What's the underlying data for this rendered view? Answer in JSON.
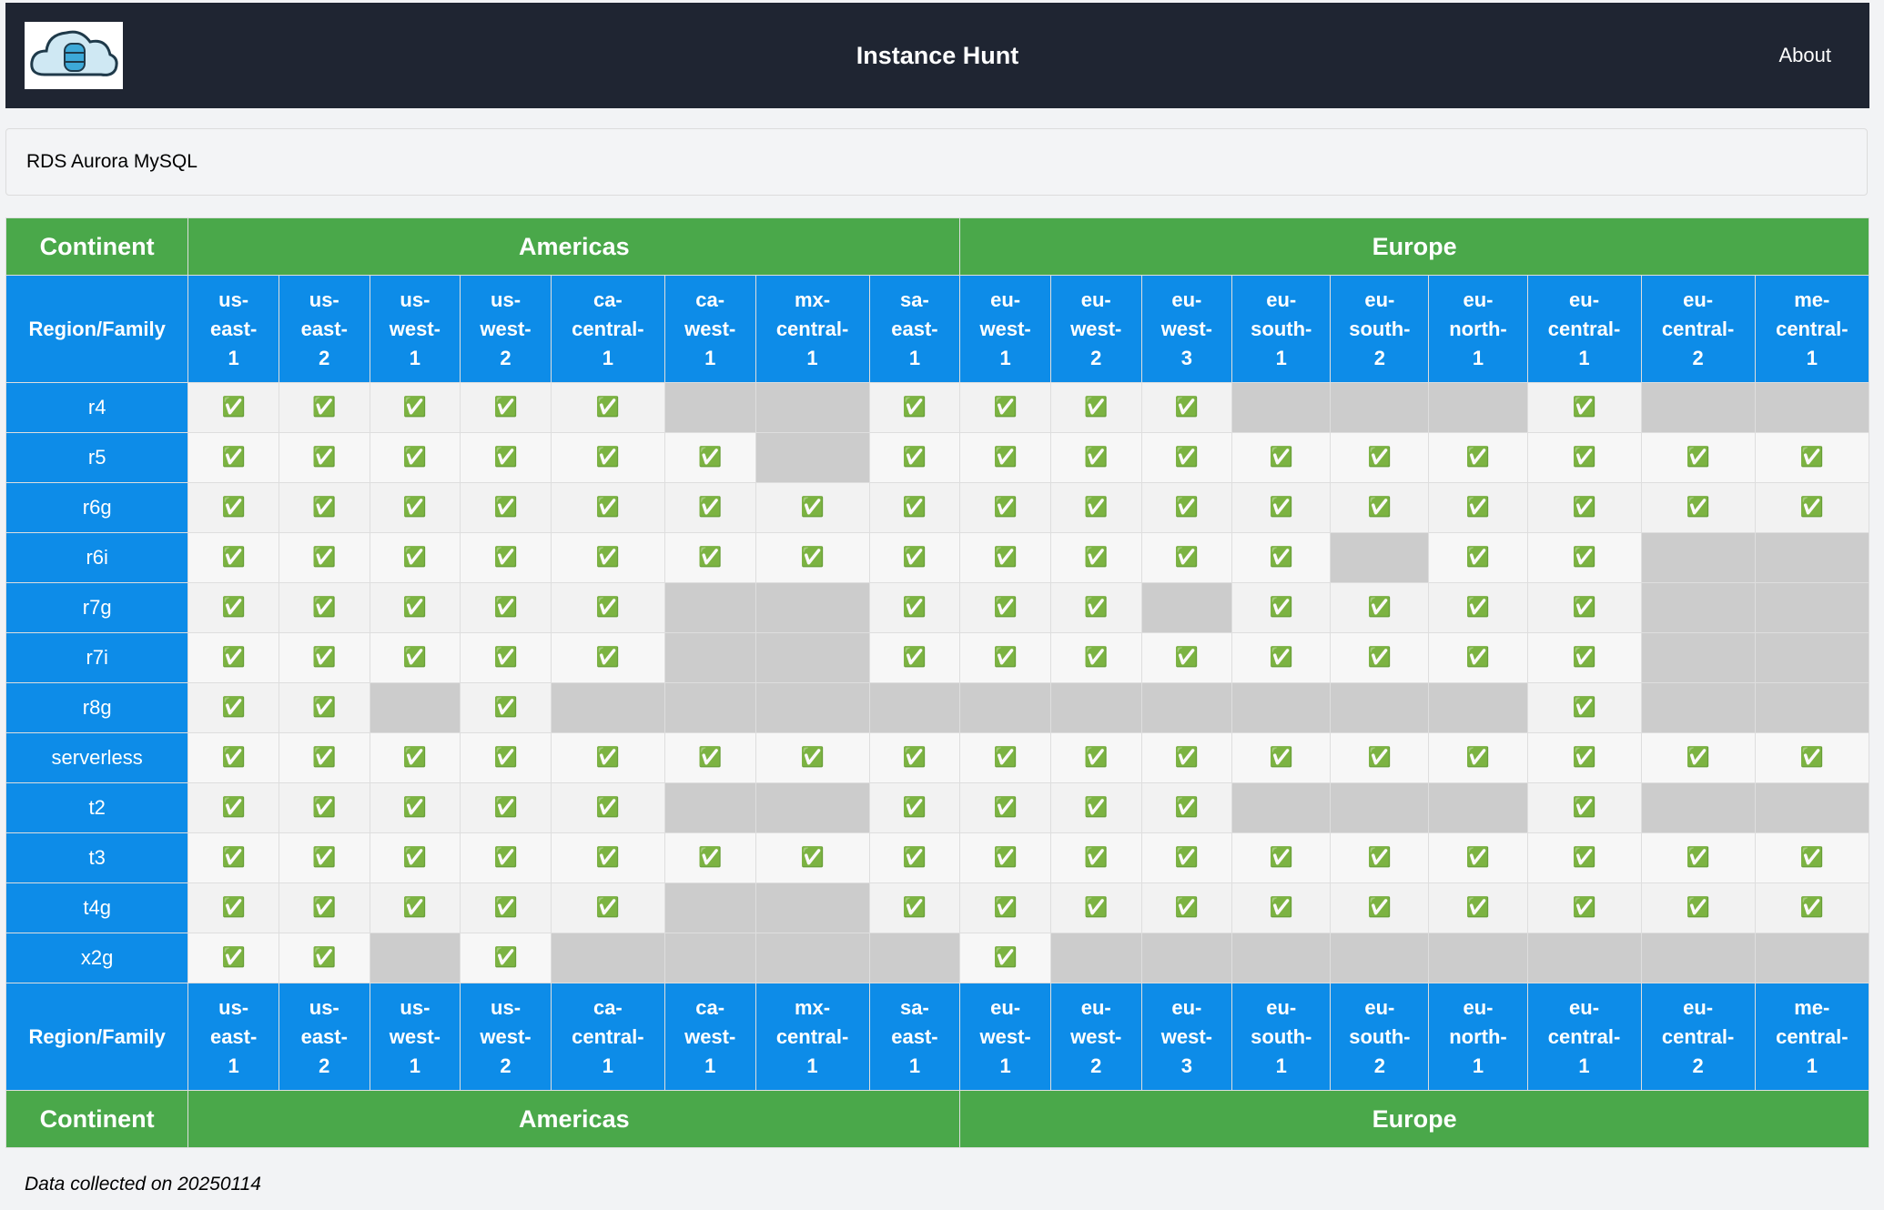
{
  "header": {
    "title": "Instance Hunt",
    "nav": "About"
  },
  "service": "RDS Aurora MySQL",
  "table": {
    "continent_label": "Continent",
    "region_label": "Region/Family",
    "continents": [
      {
        "name": "Americas",
        "span": 8
      },
      {
        "name": "Europe",
        "span": 9
      }
    ],
    "regions": [
      "us-east-1",
      "us-east-2",
      "us-west-1",
      "us-west-2",
      "ca-central-1",
      "ca-west-1",
      "mx-central-1",
      "sa-east-1",
      "eu-west-1",
      "eu-west-2",
      "eu-west-3",
      "eu-south-1",
      "eu-south-2",
      "eu-north-1",
      "eu-central-1",
      "eu-central-2",
      "me-central-1"
    ],
    "check": "✅",
    "rows": [
      {
        "family": "r4",
        "available": [
          1,
          1,
          1,
          1,
          1,
          0,
          0,
          1,
          1,
          1,
          1,
          0,
          0,
          0,
          1,
          0,
          0
        ]
      },
      {
        "family": "r5",
        "available": [
          1,
          1,
          1,
          1,
          1,
          1,
          0,
          1,
          1,
          1,
          1,
          1,
          1,
          1,
          1,
          1,
          1
        ]
      },
      {
        "family": "r6g",
        "available": [
          1,
          1,
          1,
          1,
          1,
          1,
          1,
          1,
          1,
          1,
          1,
          1,
          1,
          1,
          1,
          1,
          1
        ]
      },
      {
        "family": "r6i",
        "available": [
          1,
          1,
          1,
          1,
          1,
          1,
          1,
          1,
          1,
          1,
          1,
          1,
          0,
          1,
          1,
          0,
          0
        ]
      },
      {
        "family": "r7g",
        "available": [
          1,
          1,
          1,
          1,
          1,
          0,
          0,
          1,
          1,
          1,
          0,
          1,
          1,
          1,
          1,
          0,
          0
        ]
      },
      {
        "family": "r7i",
        "available": [
          1,
          1,
          1,
          1,
          1,
          0,
          0,
          1,
          1,
          1,
          1,
          1,
          1,
          1,
          1,
          0,
          0
        ]
      },
      {
        "family": "r8g",
        "available": [
          1,
          1,
          0,
          1,
          0,
          0,
          0,
          0,
          0,
          0,
          0,
          0,
          0,
          0,
          1,
          0,
          0
        ]
      },
      {
        "family": "serverless",
        "available": [
          1,
          1,
          1,
          1,
          1,
          1,
          1,
          1,
          1,
          1,
          1,
          1,
          1,
          1,
          1,
          1,
          1
        ]
      },
      {
        "family": "t2",
        "available": [
          1,
          1,
          1,
          1,
          1,
          0,
          0,
          1,
          1,
          1,
          1,
          0,
          0,
          0,
          1,
          0,
          0
        ]
      },
      {
        "family": "t3",
        "available": [
          1,
          1,
          1,
          1,
          1,
          1,
          1,
          1,
          1,
          1,
          1,
          1,
          1,
          1,
          1,
          1,
          1
        ]
      },
      {
        "family": "t4g",
        "available": [
          1,
          1,
          1,
          1,
          1,
          0,
          0,
          1,
          1,
          1,
          1,
          1,
          1,
          1,
          1,
          1,
          1
        ]
      },
      {
        "family": "x2g",
        "available": [
          1,
          1,
          0,
          1,
          0,
          0,
          0,
          0,
          1,
          0,
          0,
          0,
          0,
          0,
          0,
          0,
          0
        ]
      }
    ]
  },
  "footer": "Data collected on 20250114"
}
